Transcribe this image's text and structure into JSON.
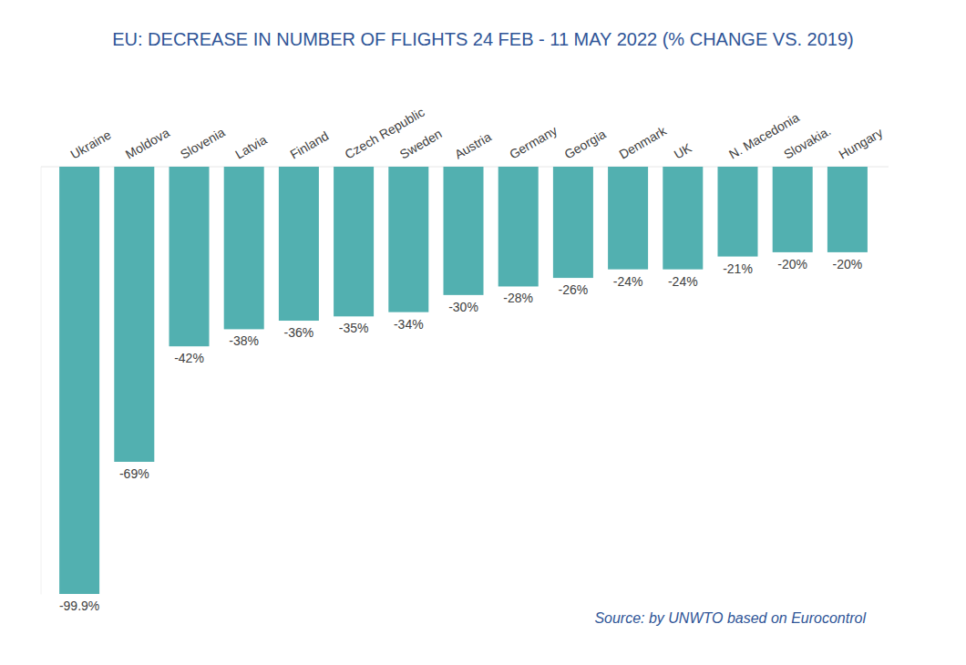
{
  "chart_data": {
    "type": "bar",
    "title": "EU: DECREASE IN NUMBER OF FLIGHTS 24 FEB - 11 MAY 2022 (% CHANGE VS. 2019)",
    "source": "Source: by UNWTO based on Eurocontrol",
    "categories": [
      "Ukraine",
      "Moldova",
      "Slovenia",
      "Latvia",
      "Finland",
      "Czech Republic",
      "Sweden",
      "Austria",
      "Germany",
      "Georgia",
      "Denmark",
      "UK",
      "N. Macedonia",
      "Slovakia.",
      "Hungary"
    ],
    "values": [
      -99.9,
      -69,
      -42,
      -38,
      -36,
      -35,
      -34,
      -30,
      -28,
      -26,
      -24,
      -24,
      -21,
      -20,
      -20
    ],
    "value_labels": [
      "-99.9%",
      "-69%",
      "-42%",
      "-38%",
      "-36%",
      "-35%",
      "-34%",
      "-30%",
      "-28%",
      "-26%",
      "-24%",
      "-24%",
      "-21%",
      "-20%",
      "-20%"
    ],
    "color": "#52b0b0",
    "ylim": [
      -100,
      0
    ],
    "yticks": [
      0
    ],
    "grid": true,
    "data_labels": true,
    "tick_labels": "x"
  }
}
